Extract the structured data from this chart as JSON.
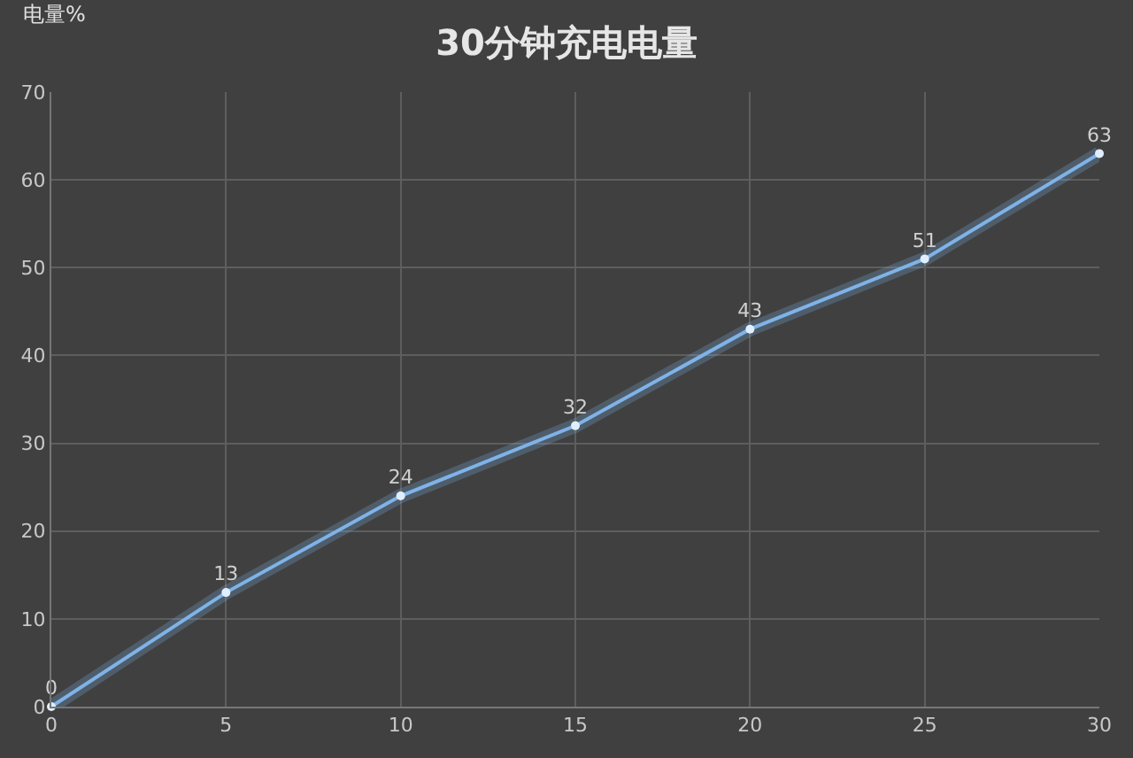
{
  "chart_data": {
    "type": "line",
    "title": "30分钟充电电量",
    "ylabel": "电量%",
    "x": [
      0,
      5,
      10,
      15,
      20,
      25,
      30
    ],
    "series": [
      {
        "color": "#7fb3e8",
        "values": [
          0,
          13,
          24,
          32,
          43,
          51,
          63
        ]
      }
    ],
    "xlim": [
      0,
      30
    ],
    "xticks": [
      0,
      5,
      10,
      15,
      20,
      25,
      30
    ],
    "ylim": [
      0,
      70
    ],
    "yticks": [
      0,
      10,
      20,
      30,
      40,
      50,
      60,
      70
    ],
    "grid": true,
    "marker": "circle",
    "line_style": "solid",
    "data_labels": true
  }
}
